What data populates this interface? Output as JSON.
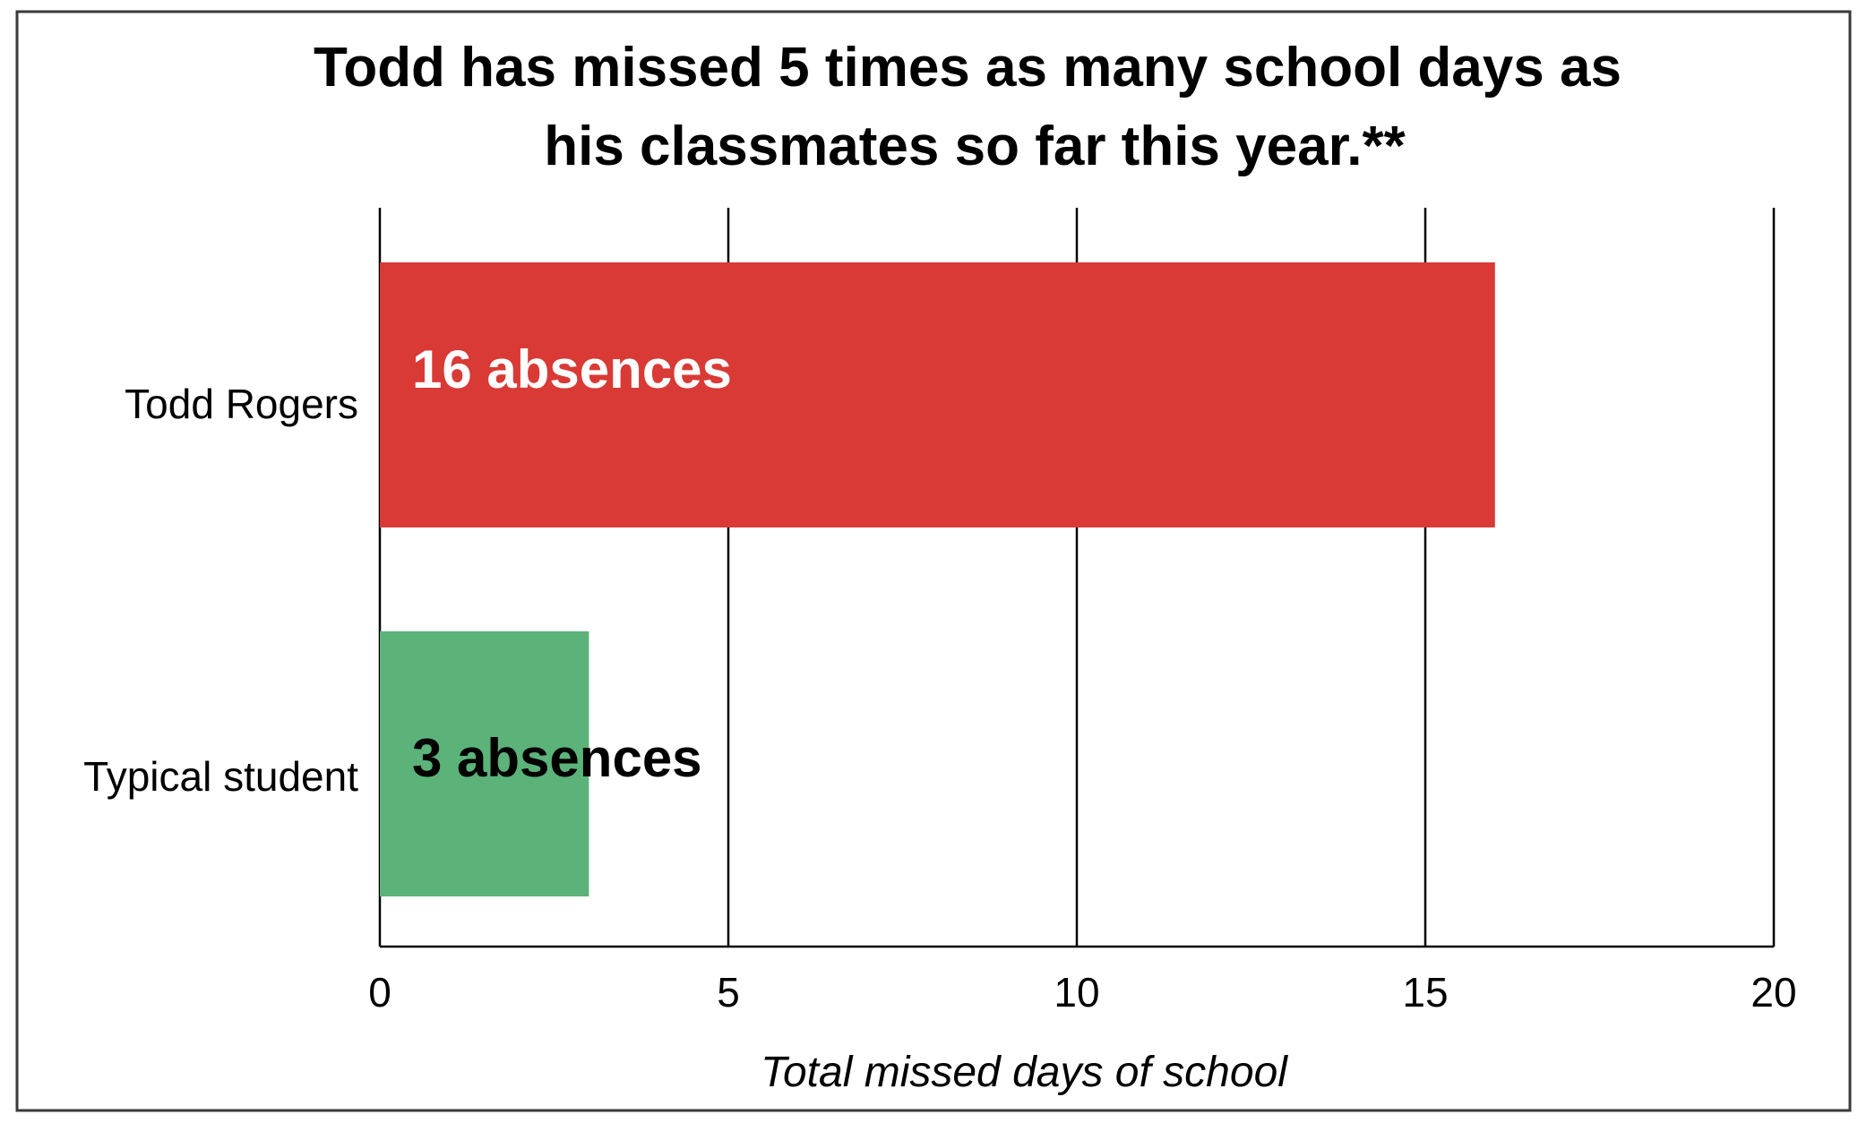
{
  "chart_data": {
    "type": "bar",
    "orientation": "horizontal",
    "title": "Todd has missed 5 times as many school days as his classmates so far this year.**",
    "title_lines": [
      "Todd has missed 5 times as many school days as",
      "his classmates so far this year.**"
    ],
    "categories": [
      "Todd Rogers",
      "Typical student"
    ],
    "values": [
      16,
      3
    ],
    "data_labels": [
      "16 absences",
      "3 absences"
    ],
    "bar_colors": [
      "#d93a35",
      "#5bb37a"
    ],
    "data_label_colors": [
      "#ffffff",
      "#000000"
    ],
    "xlabel": "Total missed days of school",
    "ylabel": "",
    "xlim": [
      0,
      20
    ],
    "x_ticks": [
      0,
      5,
      10,
      15,
      20
    ],
    "x_tick_labels": [
      "0",
      "5",
      "10",
      "15",
      "20"
    ],
    "grid": true,
    "legend": "none"
  }
}
